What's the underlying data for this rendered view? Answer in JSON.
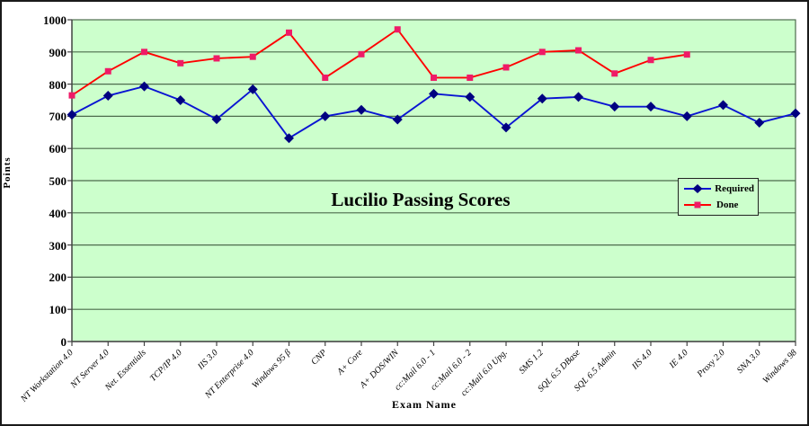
{
  "window": {
    "background": "#ffffff",
    "border_color": "#1a1a1a"
  },
  "chart_data": {
    "type": "line",
    "title": "Lucilio Passing Scores",
    "xlabel": "Exam Name",
    "ylabel": "Points",
    "ylim": [
      0,
      1000
    ],
    "ytick_step": 100,
    "grid": "horizontal",
    "plot_bg": "#ccffcc",
    "grid_color": "#4d6b4d",
    "axis_color": "#444444",
    "legend_position": "middle-right",
    "categories": [
      "NT Workstation 4.0",
      "NT Server 4.0",
      "Net. Essentials",
      "TCP/IP 4.0",
      "IIS 3.0",
      "NT Enterprise 4.0",
      "Windows 95 β",
      "CNP",
      "A+ Core",
      "A+ DOS/WIN",
      "cc:Mail 6.0 - 1",
      "cc:Mail 6.0 - 2",
      "cc:Mail 6.0 Upg.",
      "SMS 1.2",
      "SQL 6.5 DBase",
      "SQL 6.5 Admin",
      "IIS 4.0",
      "IE 4.0",
      "Proxy 2.0",
      "SNA 3.0",
      "Windows 98"
    ],
    "series": [
      {
        "name": "Required",
        "marker": "diamond",
        "line_color": "#0a14d2",
        "marker_color": "#000080",
        "values": [
          705,
          764,
          793,
          750,
          691,
          784,
          632,
          700,
          720,
          690,
          770,
          760,
          665,
          755,
          760,
          730,
          730,
          700,
          735,
          680,
          709
        ]
      },
      {
        "name": "Done",
        "marker": "square",
        "line_color": "#ff0000",
        "marker_color": "#ef1a67",
        "values": [
          765,
          840,
          900,
          865,
          880,
          885,
          960,
          820,
          893,
          970,
          820,
          820,
          852,
          900,
          905,
          833,
          875,
          892,
          null,
          null,
          null
        ]
      }
    ]
  }
}
